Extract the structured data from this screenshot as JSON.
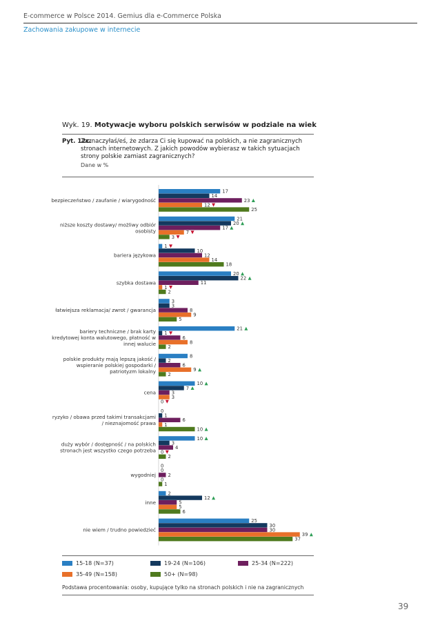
{
  "header": {
    "title": "E-commerce w Polsce 2014. Gemius dla e-Commerce Polska",
    "subtitle": "Zachowania zakupowe w internecie"
  },
  "figure": {
    "prefix": "Wyk. 19.",
    "title": "Motywacje wyboru polskich serwisów w podziale na wiek"
  },
  "question": {
    "number": "Pyt. 12c.",
    "text": "Zaznaczyłaś/eś, że zdarza Ci się kupować na polskich, a nie zagranicznych stronach internetowych. Z jakich powodów wybierasz w takich sytuacjach strony polskie zamiast zagranicznych?",
    "unit": "Dane w %"
  },
  "chart_data": {
    "type": "bar",
    "orientation": "horizontal",
    "categories": [
      "bezpieczeństwo / zaufanie / wiarygodność",
      "niższe koszty dostawy/ możliwy odbiór osobisty",
      "bariera językowa",
      "szybka dostawa",
      "łatwiejsza reklamacja/ zwrot / gwarancja",
      "bariery techniczne / brak karty kredytowej konta walutowego, płatność w innej walucie",
      "polskie produkty mają lepszą jakość / wspieranie polskiej gospodarki / patriotyzm lokalny",
      "cena",
      "ryzyko / obawa przed takimi transakcjami / nieznajomość prawa",
      "duży wybór / dostępność / na polskich stronach jest wszystko czego potrzeba",
      "wygodniej",
      "inne",
      "nie wiem / trudno powiedzieć"
    ],
    "series": [
      {
        "name": "15-18 (N=37)",
        "color": "#2a7fc3",
        "values": [
          17,
          21,
          1,
          20,
          3,
          21,
          8,
          10,
          0,
          10,
          0,
          2,
          25
        ],
        "flags": [
          "",
          "",
          "down",
          "up",
          "",
          "up",
          "",
          "up",
          "",
          "up",
          "",
          "",
          ""
        ]
      },
      {
        "name": "19-24 (N=106)",
        "color": "#14395e",
        "values": [
          14,
          20,
          10,
          22,
          3,
          1,
          2,
          7,
          1,
          3,
          0,
          12,
          30
        ],
        "flags": [
          "",
          "up",
          "",
          "up",
          "",
          "down",
          "",
          "up",
          "",
          "",
          "",
          "up",
          ""
        ]
      },
      {
        "name": "25-34 (N=222)",
        "color": "#6e1f5e",
        "values": [
          23,
          17,
          12,
          11,
          8,
          6,
          6,
          3,
          6,
          4,
          2,
          5,
          30
        ],
        "flags": [
          "up",
          "up",
          "",
          "",
          "",
          "",
          "",
          "",
          "",
          "",
          "",
          "",
          ""
        ]
      },
      {
        "name": "35-49 (N=158)",
        "color": "#e8702a",
        "values": [
          12,
          7,
          14,
          1,
          9,
          8,
          9,
          3,
          1,
          0,
          0,
          5,
          39
        ],
        "flags": [
          "down",
          "down",
          "",
          "down",
          "",
          "",
          "up",
          "",
          "",
          "down",
          "",
          "",
          "up"
        ]
      },
      {
        "name": "50+ (N=98)",
        "color": "#4f7a1e",
        "values": [
          25,
          3,
          18,
          2,
          5,
          2,
          2,
          0,
          10,
          2,
          1,
          6,
          37
        ],
        "flags": [
          "",
          "down",
          "",
          "",
          "",
          "",
          "",
          "down",
          "up",
          "",
          "",
          "",
          ""
        ]
      }
    ],
    "xlim": [
      0,
      40
    ],
    "legend_position": "bottom",
    "marker_up_color": "#2e9e56",
    "marker_down_color": "#c8102e"
  },
  "legend": [
    "15-18 (N=37)",
    "19-24 (N=106)",
    "25-34 (N=222)",
    "35-49 (N=158)",
    "50+ (N=98)"
  ],
  "base_note": "Podstawa procentowania: osoby, kupujące tylko na stronach polskich i nie na zagranicznych",
  "page_number": "39"
}
